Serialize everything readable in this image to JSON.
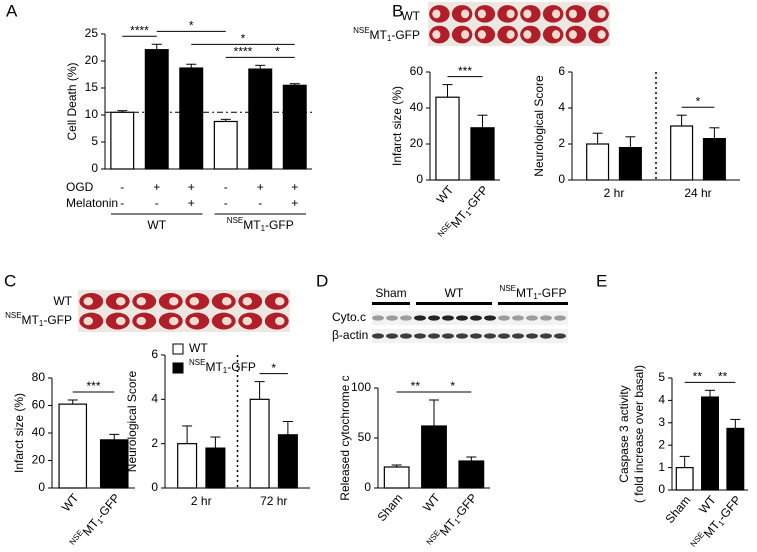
{
  "chart_data": [
    {
      "panel": "A",
      "type": "bar",
      "ylabel": "Cell Death (%)",
      "ylim": [
        0,
        25
      ],
      "yticks": [
        0,
        5,
        10,
        15,
        20,
        25
      ],
      "values": [
        10.5,
        22.1,
        18.7,
        8.8,
        18.5,
        15.5
      ],
      "errors": [
        0.3,
        1.0,
        0.7,
        0.4,
        0.7,
        0.3
      ],
      "colors": [
        "#ffffff",
        "#000000",
        "#000000",
        "#ffffff",
        "#000000",
        "#000000"
      ],
      "reference_line": 10.5,
      "rows": [
        {
          "label": "OGD",
          "marks": [
            "-",
            "+",
            "+",
            "-",
            "+",
            "+"
          ]
        },
        {
          "label": "Melatonin",
          "marks": [
            "-",
            "-",
            "+",
            "-",
            "-",
            "+"
          ]
        }
      ],
      "groups": [
        "WT",
        {
          "sup": "NSE",
          "base": "MT",
          "sub": "1",
          "tail": "-GFP"
        }
      ],
      "annotations": [
        {
          "from": 0,
          "to": 1,
          "label": "****"
        },
        {
          "from": 3,
          "to": 4,
          "label": "****"
        },
        {
          "from": 4,
          "to": 5,
          "label": "*"
        },
        {
          "from": 2,
          "to": 5,
          "label": "*"
        },
        {
          "from": 1,
          "to": 3,
          "label": "*"
        }
      ]
    },
    {
      "panel": "B",
      "type": "bar",
      "ylabel": "Infarct size (%)",
      "ylim": [
        0,
        60
      ],
      "yticks": [
        0,
        20,
        40,
        60
      ],
      "categories": [
        "WT",
        {
          "sup": "NSE",
          "base": "MT",
          "sub": "1",
          "tail": "-GFP"
        }
      ],
      "values": [
        46,
        29
      ],
      "errors": [
        7,
        7
      ],
      "colors": [
        "#ffffff",
        "#000000"
      ],
      "image_labels": [
        "WT",
        {
          "sup": "NSE",
          "base": "MT",
          "sub": "1",
          "tail": "-GFP"
        }
      ],
      "annotations": [
        {
          "from": 0,
          "to": 1,
          "label": "***"
        }
      ]
    },
    {
      "type": "grouped_bar",
      "ylabel": "Neurological Score",
      "ylim": [
        0,
        6
      ],
      "yticks": [
        0,
        2,
        4,
        6
      ],
      "categories": [
        "2 hr",
        "24 hr"
      ],
      "series": [
        {
          "name": "WT",
          "color": "#ffffff",
          "values": [
            2.0,
            3.0
          ],
          "errors": [
            0.6,
            0.6
          ]
        },
        {
          "name": {
            "sup": "NSE",
            "base": "MT",
            "sub": "1",
            "tail": "-GFP"
          },
          "color": "#000000",
          "values": [
            1.8,
            2.3
          ],
          "errors": [
            0.6,
            0.6
          ]
        }
      ],
      "legend": false,
      "annotations": [
        {
          "category": 1,
          "label": "*"
        }
      ]
    },
    {
      "panel": "C",
      "type": "bar",
      "ylabel": "Infarct size (%)",
      "ylim": [
        0,
        80
      ],
      "yticks": [
        0,
        20,
        40,
        60,
        80
      ],
      "categories": [
        "WT",
        {
          "sup": "NSE",
          "base": "MT",
          "sub": "1",
          "tail": "-GFP"
        }
      ],
      "values": [
        61,
        35
      ],
      "errors": [
        3,
        4
      ],
      "colors": [
        "#ffffff",
        "#000000"
      ],
      "image_labels": [
        "WT",
        {
          "sup": "NSE",
          "base": "MT",
          "sub": "1",
          "tail": "-GFP"
        }
      ],
      "annotations": [
        {
          "from": 0,
          "to": 1,
          "label": "***"
        }
      ]
    },
    {
      "type": "grouped_bar",
      "ylabel": "Neurological Score",
      "ylim": [
        0,
        6
      ],
      "yticks": [
        0,
        2,
        4,
        6
      ],
      "categories": [
        "2 hr",
        "72 hr"
      ],
      "series": [
        {
          "name": "WT",
          "color": "#ffffff",
          "values": [
            2.0,
            4.0
          ],
          "errors": [
            0.8,
            0.8
          ]
        },
        {
          "name": {
            "sup": "NSE",
            "base": "MT",
            "sub": "1",
            "tail": "-GFP"
          },
          "color": "#000000",
          "values": [
            1.8,
            2.4
          ],
          "errors": [
            0.5,
            0.6
          ]
        }
      ],
      "legend": true,
      "annotations": [
        {
          "category": 1,
          "label": "*"
        }
      ]
    },
    {
      "panel": "D",
      "type": "bar",
      "ylabel": "Released cytochrome c",
      "ylim": [
        0,
        100
      ],
      "yticks": [
        0,
        50,
        100
      ],
      "categories": [
        "Sham",
        "WT",
        {
          "sup": "NSE",
          "base": "MT",
          "sub": "1",
          "tail": "-GFP"
        }
      ],
      "values": [
        21,
        62,
        27
      ],
      "errors": [
        2,
        26,
        4
      ],
      "colors": [
        "#ffffff",
        "#000000",
        "#000000"
      ],
      "blot": {
        "groups": [
          "Sham",
          "WT",
          {
            "sup": "NSE",
            "base": "MT",
            "sub": "1",
            "tail": "-GFP"
          }
        ],
        "rows": [
          "Cyto.c",
          "β-actin"
        ]
      },
      "annotations": [
        {
          "from": 0,
          "to": 1,
          "label": "**"
        },
        {
          "from": 1,
          "to": 2,
          "label": "*"
        }
      ]
    },
    {
      "panel": "E",
      "type": "bar",
      "ylabel": [
        "Caspase 3 activity",
        "( fold increase over basal)"
      ],
      "ylim": [
        0,
        5
      ],
      "yticks": [
        0,
        1,
        2,
        3,
        4,
        5
      ],
      "categories": [
        "Sham",
        "WT",
        {
          "sup": "NSE",
          "base": "MT",
          "sub": "1",
          "tail": "-GFP"
        }
      ],
      "values": [
        1.0,
        4.15,
        2.75
      ],
      "errors": [
        0.5,
        0.3,
        0.4
      ],
      "colors": [
        "#ffffff",
        "#000000",
        "#000000"
      ],
      "annotations": [
        {
          "from": 0,
          "to": 1,
          "label": "**"
        },
        {
          "from": 1,
          "to": 2,
          "label": "**"
        }
      ]
    }
  ]
}
